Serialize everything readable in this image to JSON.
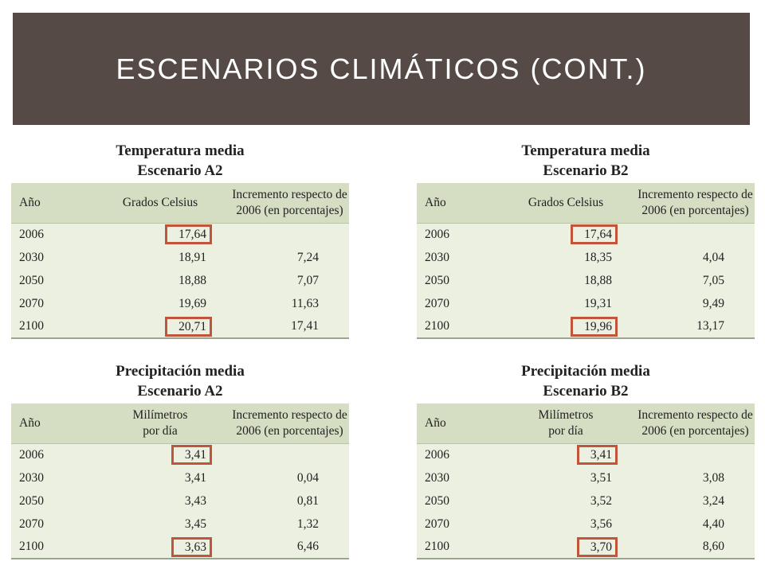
{
  "slide": {
    "title": "ESCENARIOS CLIMÁTICOS (CONT.)"
  },
  "tables": [
    {
      "title1": "Temperatura media",
      "title2": "Escenario A2",
      "headers": [
        "Año",
        "Grados Celsius",
        "Incremento respecto de",
        "2006 (en porcentajes)"
      ],
      "rows": [
        [
          "2006",
          "17,64",
          ""
        ],
        [
          "2030",
          "18,91",
          "7,24"
        ],
        [
          "2050",
          "18,88",
          "7,07"
        ],
        [
          "2070",
          "19,69",
          "11,63"
        ],
        [
          "2100",
          "20,71",
          "17,41"
        ]
      ]
    },
    {
      "title1": "Temperatura media",
      "title2": "Escenario B2",
      "headers": [
        "Año",
        "Grados Celsius",
        "Incremento respecto de",
        "2006 (en porcentajes)"
      ],
      "rows": [
        [
          "2006",
          "17,64",
          ""
        ],
        [
          "2030",
          "18,35",
          "4,04"
        ],
        [
          "2050",
          "18,88",
          "7,05"
        ],
        [
          "2070",
          "19,31",
          "9,49"
        ],
        [
          "2100",
          "19,96",
          "13,17"
        ]
      ]
    },
    {
      "title1": "Precipitación media",
      "title2": "Escenario A2",
      "headers": [
        "Año",
        "Milímetros",
        "Incremento respecto de",
        "2006 (en porcentajes)"
      ],
      "headers_b": "por día",
      "rows": [
        [
          "2006",
          "3,41",
          ""
        ],
        [
          "2030",
          "3,41",
          "0,04"
        ],
        [
          "2050",
          "3,43",
          "0,81"
        ],
        [
          "2070",
          "3,45",
          "1,32"
        ],
        [
          "2100",
          "3,63",
          "6,46"
        ]
      ]
    },
    {
      "title1": "Precipitación media",
      "title2": "Escenario B2",
      "headers": [
        "Año",
        "Milímetros",
        "Incremento respecto de",
        "2006 (en porcentajes)"
      ],
      "headers_b": "por día",
      "rows": [
        [
          "2006",
          "3,41",
          ""
        ],
        [
          "2030",
          "3,51",
          "3,08"
        ],
        [
          "2050",
          "3,52",
          "3,24"
        ],
        [
          "2070",
          "3,56",
          "4,40"
        ],
        [
          "2100",
          "3,70",
          "8,60"
        ]
      ]
    }
  ]
}
